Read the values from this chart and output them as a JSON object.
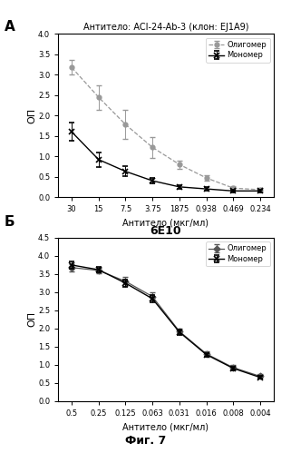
{
  "panel_A": {
    "title": "Антитело: ACI-24-Ab-3 (клон: EJ1A9)",
    "xlabel": "Антитело (мкг/мл)",
    "ylabel": "ОП",
    "x_labels": [
      "30",
      "15",
      "7.5",
      "3.75",
      "1875",
      "0.938",
      "0.469",
      "0.234"
    ],
    "oligomer_y": [
      3.18,
      2.45,
      1.78,
      1.22,
      0.8,
      0.47,
      0.22,
      0.18
    ],
    "oligomer_err": [
      0.18,
      0.3,
      0.35,
      0.25,
      0.1,
      0.07,
      0.05,
      0.04
    ],
    "monomer_y": [
      1.6,
      0.92,
      0.63,
      0.4,
      0.25,
      0.2,
      0.15,
      0.15
    ],
    "monomer_err": [
      0.22,
      0.18,
      0.12,
      0.06,
      0.05,
      0.04,
      0.03,
      0.03
    ],
    "ylim": [
      0.0,
      4.0
    ],
    "yticks": [
      0.0,
      0.5,
      1.0,
      1.5,
      2.0,
      2.5,
      3.0,
      3.5,
      4.0
    ],
    "ytick_labels": [
      "0.0",
      "0.5",
      "1.0",
      "1.5",
      "2.0",
      "2.5",
      "3.0",
      "3.5",
      "4.0"
    ],
    "oligomer_label": "Олигомер",
    "monomer_label": "Мономер",
    "panel_label": "А"
  },
  "panel_B": {
    "title": "6E10",
    "xlabel": "Антитело (мкг/мл)",
    "ylabel": "ОП",
    "x_labels": [
      "0.5",
      "0.25",
      "0.125",
      "0.063",
      "0.031",
      "0.016",
      "0.008",
      "0.004"
    ],
    "oligomer_y": [
      3.68,
      3.6,
      3.3,
      2.88,
      1.92,
      1.3,
      0.92,
      0.68
    ],
    "oligomer_err": [
      0.1,
      0.08,
      0.12,
      0.12,
      0.08,
      0.06,
      0.06,
      0.05
    ],
    "monomer_y": [
      3.75,
      3.62,
      3.25,
      2.82,
      1.9,
      1.28,
      0.9,
      0.65
    ],
    "monomer_err": [
      0.1,
      0.08,
      0.1,
      0.1,
      0.08,
      0.05,
      0.05,
      0.04
    ],
    "ylim": [
      0.0,
      4.5
    ],
    "yticks": [
      0.0,
      0.5,
      1.0,
      1.5,
      2.0,
      2.5,
      3.0,
      3.5,
      4.0,
      4.5
    ],
    "ytick_labels": [
      "0.0",
      "0.5",
      "1.0",
      "1.5",
      "2.0",
      "2.5",
      "3.0",
      "3.5",
      "4.0",
      "4.5"
    ],
    "oligomer_label": "Олигомер",
    "monomer_label": "Мономер",
    "panel_label": "Б"
  },
  "fig_label": "Фиг. 7",
  "background_color": "#ffffff",
  "oligomer_color_A": "#999999",
  "monomer_color_A": "#000000",
  "oligomer_color_B": "#555555",
  "monomer_color_B": "#000000"
}
